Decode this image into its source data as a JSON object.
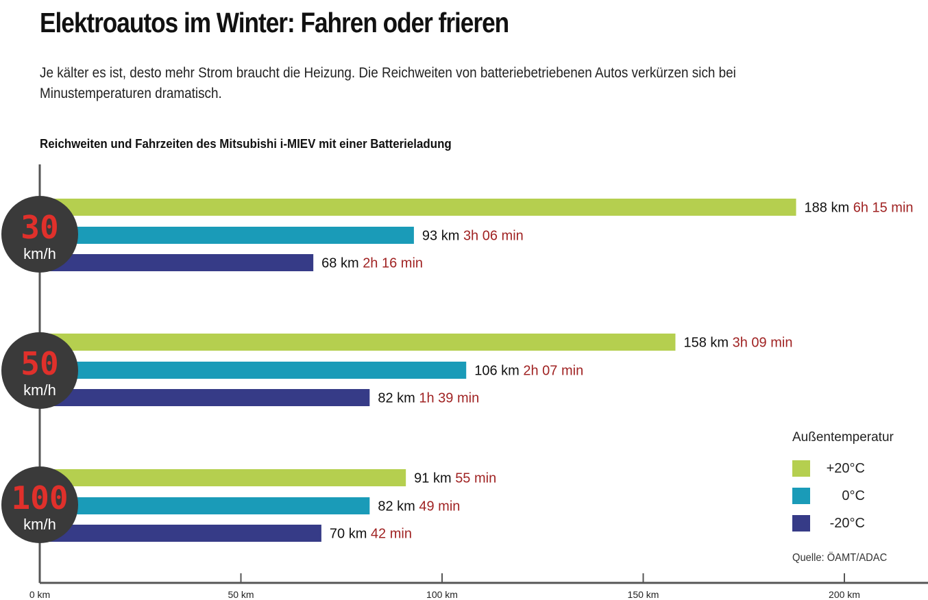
{
  "header": {
    "title": "Elektroautos im Winter: Fahren oder frieren",
    "subtitle": "Je kälter es ist, desto mehr Strom braucht die Heizung. Die Reichweiten von batteriebetriebenen Autos verkürzen sich bei Minustemperaturen dramatisch.",
    "chart_heading": "Reichweiten und Fahrzeiten des Mitsubishi i-MIEV mit einer Batterieladung"
  },
  "legend": {
    "title": "Außentemperatur",
    "items": [
      {
        "label": "+20°C",
        "color": "#b5cf4f"
      },
      {
        "label": "0°C",
        "color": "#1a9bb8"
      },
      {
        "label": "-20°C",
        "color": "#363b87"
      }
    ]
  },
  "source": "Quelle: ÖAMT/ADAC",
  "chart_data": {
    "type": "bar",
    "orientation": "horizontal",
    "title": "Reichweiten und Fahrzeiten des Mitsubishi i-MIEV mit einer Batterieladung",
    "xlabel": "",
    "ylabel": "",
    "xlim": [
      0,
      220
    ],
    "x_ticks": [
      0,
      50,
      100,
      150,
      200
    ],
    "x_tick_labels": [
      "0 km",
      "50 km",
      "100 km",
      "150 km",
      "200 km"
    ],
    "grid": false,
    "legend_position": "bottom-right",
    "groups": [
      {
        "speed": "30",
        "unit": "km/h",
        "bars": [
          {
            "series": "+20°C",
            "value": 188,
            "label": "188 km",
            "time": "6h 15 min"
          },
          {
            "series": "0°C",
            "value": 93,
            "label": "93 km",
            "time": "3h 06 min"
          },
          {
            "series": "-20°C",
            "value": 68,
            "label": "68 km",
            "time": "2h 16 min"
          }
        ]
      },
      {
        "speed": "50",
        "unit": "km/h",
        "bars": [
          {
            "series": "+20°C",
            "value": 158,
            "label": "158 km",
            "time": "3h 09 min"
          },
          {
            "series": "0°C",
            "value": 106,
            "label": "106 km",
            "time": "2h 07 min"
          },
          {
            "series": "-20°C",
            "value": 82,
            "label": "82 km",
            "time": "1h 39 min"
          }
        ]
      },
      {
        "speed": "100",
        "unit": "km/h",
        "bars": [
          {
            "series": "+20°C",
            "value": 91,
            "label": "91 km",
            "time": "55 min"
          },
          {
            "series": "0°C",
            "value": 82,
            "label": "82 km",
            "time": "49 min"
          },
          {
            "series": "-20°C",
            "value": 70,
            "label": "70 km",
            "time": "42 min"
          }
        ]
      }
    ]
  }
}
